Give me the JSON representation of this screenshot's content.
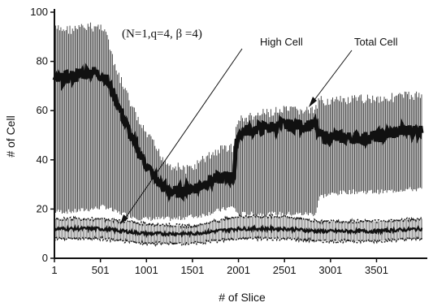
{
  "chart_data": {
    "type": "line",
    "xlabel": "# of Slice",
    "ylabel": "# of Cell",
    "xlim": [
      1,
      4000
    ],
    "ylim": [
      0,
      100
    ],
    "x_ticks": [
      "1",
      "501",
      "1001",
      "1501",
      "2001",
      "2501",
      "3001",
      "3501"
    ],
    "x_tick_values": [
      1,
      501,
      1001,
      1501,
      2001,
      2501,
      3001,
      3501
    ],
    "y_ticks": [
      "0",
      "20",
      "40",
      "60",
      "80",
      "100"
    ],
    "y_tick_values": [
      0,
      20,
      40,
      60,
      80,
      100
    ],
    "parameter_label": "(N=1,q=4, β =4)",
    "series": [
      {
        "name": "Total Cell",
        "band_x": [
          1,
          200,
          400,
          550,
          650,
          750,
          850,
          950,
          1050,
          1150,
          1250,
          1350,
          1450,
          1550,
          1650,
          1750,
          1850,
          1950,
          1990,
          2100,
          2300,
          2500,
          2700,
          2840,
          2880,
          3000,
          3200,
          3400,
          3600,
          3800,
          4000
        ],
        "upper": [
          95,
          95,
          96,
          96,
          80,
          72,
          63,
          55,
          50,
          44,
          40,
          39,
          38,
          40,
          43,
          45,
          47,
          47,
          58,
          59,
          61,
          62,
          62,
          62,
          66,
          66,
          66,
          67,
          67,
          68,
          68
        ],
        "mean": [
          72,
          74,
          76,
          74,
          66,
          57,
          48,
          41,
          35,
          30,
          27,
          27,
          28,
          29,
          31,
          32,
          33,
          33,
          50,
          52,
          53,
          54,
          54,
          54,
          50,
          49,
          49,
          49,
          50,
          52,
          52
        ],
        "lower": [
          18,
          18,
          19,
          20,
          18,
          17,
          16,
          15,
          15,
          15,
          15,
          15,
          16,
          16,
          17,
          18,
          19,
          20,
          17,
          17,
          17,
          17,
          17,
          17,
          24,
          25,
          26,
          26,
          26,
          27,
          27
        ]
      },
      {
        "name": "High Cell",
        "band_x": [
          1,
          500,
          1000,
          1500,
          1990,
          2500,
          2880,
          3500,
          4000
        ],
        "upper": [
          16,
          16,
          14,
          13,
          17,
          17,
          15,
          15,
          16
        ],
        "mean": [
          12,
          12,
          10,
          10,
          12,
          12,
          11,
          11,
          12
        ],
        "lower": [
          8,
          8,
          6,
          6,
          8,
          8,
          7,
          7,
          8
        ]
      }
    ],
    "legend": "annotations with arrows",
    "grid": false
  }
}
